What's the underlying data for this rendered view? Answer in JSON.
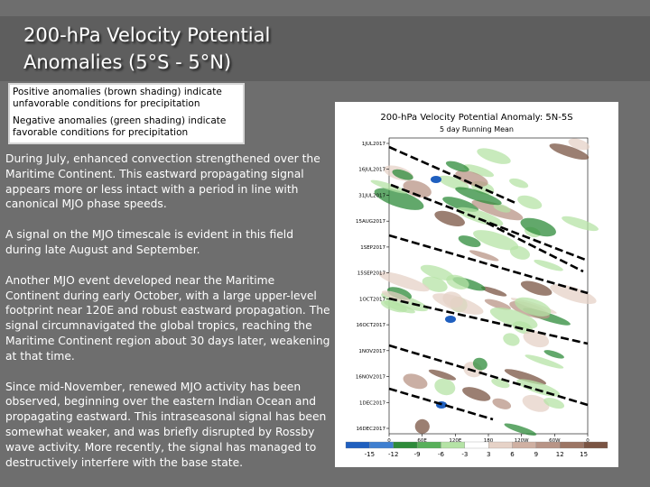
{
  "slide": {
    "title": "200-hPa Velocity Potential\nAnomalies (5°S - 5°N)",
    "legend": {
      "positive": "Positive anomalies (brown shading) indicate unfavorable conditions for precipitation",
      "negative": "Negative anomalies (green shading) indicate favorable conditions for precipitation"
    },
    "paragraphs": [
      "During July, enhanced convection strengthened over the Maritime Continent. This eastward propagating signal appears more or less intact with a period in line with canonical MJO phase speeds.",
      "A signal on the MJO timescale is evident in this field during late August and September.",
      "Another MJO event developed near the Maritime Continent during early October, with a large upper-level footprint near 120E and robust eastward propagation. The signal circumnavigated the global tropics, reaching the Maritime Continent region about 30 days later, weakening at that time.",
      "Since mid-November, renewed MJO activity has been observed, beginning over the eastern Indian Ocean and propagating eastward. This intraseasonal signal has been somewhat weaker, and was briefly disrupted by Rossby wave activity. More recently, the signal has managed to destructively interfere with the base state."
    ]
  },
  "chart_data": {
    "type": "heatmap",
    "title": "200-hPa Velocity Potential Anomaly: 5N-5S",
    "subtitle": "5 day Running Mean",
    "y_tick_labels": [
      "1JUL2017",
      "16JUL2017",
      "31JUL2017",
      "15AUG2017",
      "1SEP2017",
      "15SEP2017",
      "1OCT2017",
      "16OCT2017",
      "1NOV2017",
      "16NOV2017",
      "1DEC2017",
      "16DEC2017"
    ],
    "x_tick_labels": [
      "0",
      "60E",
      "120E",
      "180",
      "120W",
      "60W",
      "0"
    ],
    "colorbar_labels": [
      "-15",
      "-12",
      "-9",
      "-6",
      "-3",
      "3",
      "6",
      "9",
      "12",
      "15"
    ],
    "colors": {
      "negative_strong": "#1f5fbf",
      "negative_mid": "#2e8b3a",
      "negative_weak": "#b5e3a6",
      "positive_weak": "#e6d2c7",
      "positive_mid": "#b89486",
      "positive_strong": "#7a5443"
    }
  }
}
